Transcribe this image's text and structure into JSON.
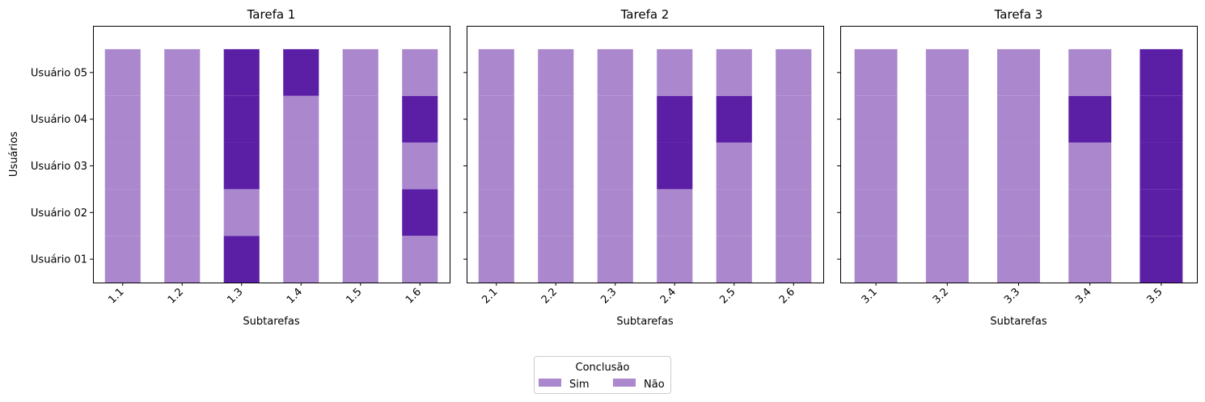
{
  "colors": {
    "sim": "#ab88cd",
    "nao": "#5b1fa6"
  },
  "chart_data": {
    "type": "bar",
    "stacked": true,
    "ylabel": "Usuários",
    "xlabel": "Subtarefas",
    "users": [
      "Usuário 01",
      "Usuário 02",
      "Usuário 03",
      "Usuário 04",
      "Usuário 05"
    ],
    "legend": {
      "title": "Conclusão",
      "entries": [
        "Sim",
        "Não"
      ],
      "placement": "bottom-center"
    },
    "panels": [
      {
        "title": "Tarefa 1",
        "categories": [
          "1.1",
          "1.2",
          "1.3",
          "1.4",
          "1.5",
          "1.6"
        ],
        "completion": [
          [
            "Sim",
            "Sim",
            "Sim",
            "Sim",
            "Sim"
          ],
          [
            "Sim",
            "Sim",
            "Sim",
            "Sim",
            "Sim"
          ],
          [
            "Não",
            "Sim",
            "Não",
            "Não",
            "Não"
          ],
          [
            "Sim",
            "Sim",
            "Sim",
            "Sim",
            "Não"
          ],
          [
            "Sim",
            "Sim",
            "Sim",
            "Sim",
            "Sim"
          ],
          [
            "Sim",
            "Não",
            "Sim",
            "Não",
            "Sim"
          ]
        ]
      },
      {
        "title": "Tarefa 2",
        "categories": [
          "2.1",
          "2.2",
          "2.3",
          "2.4",
          "2.5",
          "2.6"
        ],
        "completion": [
          [
            "Sim",
            "Sim",
            "Sim",
            "Sim",
            "Sim"
          ],
          [
            "Sim",
            "Sim",
            "Sim",
            "Sim",
            "Sim"
          ],
          [
            "Sim",
            "Sim",
            "Sim",
            "Sim",
            "Sim"
          ],
          [
            "Sim",
            "Sim",
            "Não",
            "Não",
            "Sim"
          ],
          [
            "Sim",
            "Sim",
            "Sim",
            "Não",
            "Sim"
          ],
          [
            "Sim",
            "Sim",
            "Sim",
            "Sim",
            "Sim"
          ]
        ]
      },
      {
        "title": "Tarefa 3",
        "categories": [
          "3.1",
          "3.2",
          "3.3",
          "3.4",
          "3.5"
        ],
        "completion": [
          [
            "Sim",
            "Sim",
            "Sim",
            "Sim",
            "Sim"
          ],
          [
            "Sim",
            "Sim",
            "Sim",
            "Sim",
            "Sim"
          ],
          [
            "Sim",
            "Sim",
            "Sim",
            "Sim",
            "Sim"
          ],
          [
            "Sim",
            "Sim",
            "Sim",
            "Não",
            "Sim"
          ],
          [
            "Não",
            "Não",
            "Não",
            "Não",
            "Não"
          ]
        ]
      }
    ]
  }
}
